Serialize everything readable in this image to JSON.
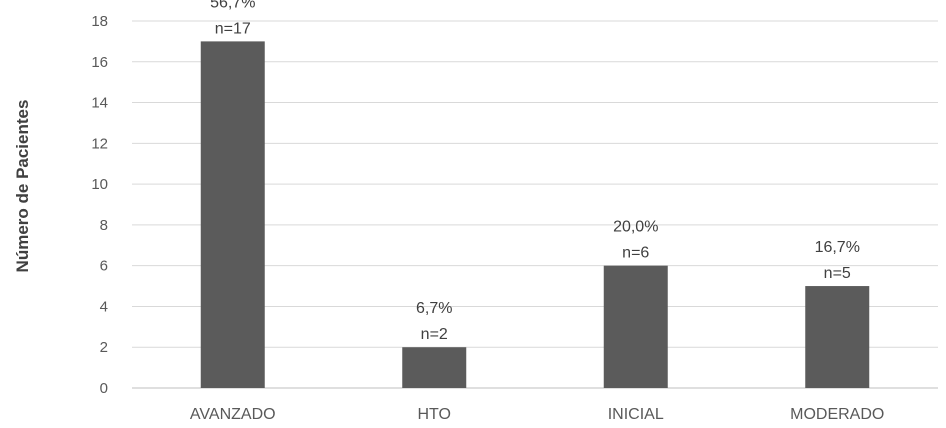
{
  "chart_data": {
    "type": "bar",
    "ylabel": "Número de Pacientes",
    "xlabel": "",
    "title": "",
    "ylim": [
      0,
      18
    ],
    "yticks": [
      0,
      2,
      4,
      6,
      8,
      10,
      12,
      14,
      16,
      18
    ],
    "grid": true,
    "categories": [
      "AVANZADO",
      "HTO",
      "INICIAL",
      "MODERADO"
    ],
    "values": [
      17,
      2,
      6,
      5
    ],
    "percent_labels": [
      "56,7%",
      "6,7%",
      "20,0%",
      "16,7%"
    ],
    "n_labels": [
      "n=17",
      "n=2",
      "n=6",
      "n=5"
    ],
    "colors": {
      "bar": "#5b5b5b",
      "grid": "#d9d9d9",
      "axis": "#bfbfbf",
      "text": "#595959"
    }
  }
}
